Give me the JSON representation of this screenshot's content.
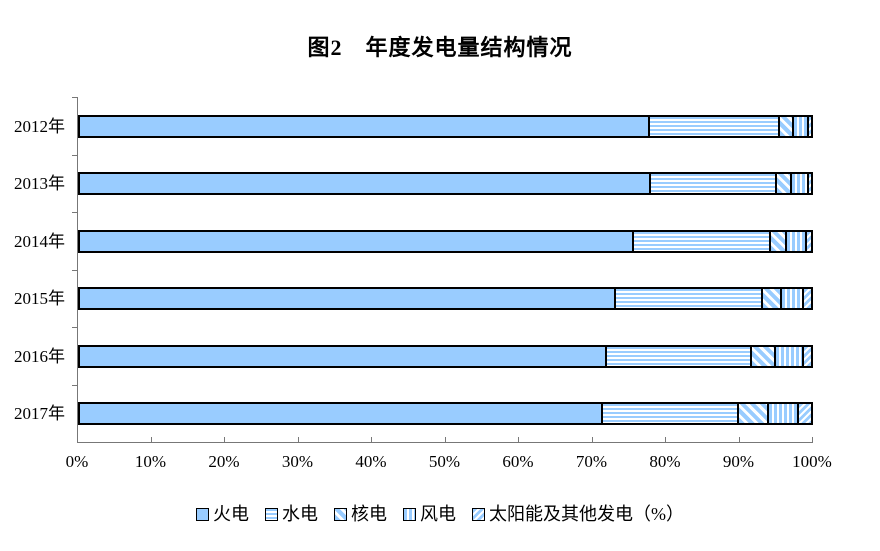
{
  "title": "图2　年度发电量结构情况",
  "chart_data": {
    "type": "bar",
    "orientation": "horizontal-stacked",
    "title": "图2　年度发电量结构情况",
    "categories": [
      "2012年",
      "2013年",
      "2014年",
      "2015年",
      "2016年",
      "2017年"
    ],
    "series": [
      {
        "name": "火电",
        "pattern": "solid",
        "values": [
          78.0,
          78.1,
          75.8,
          73.3,
          72.1,
          71.6
        ]
      },
      {
        "name": "水电",
        "pattern": "hstripe",
        "values": [
          17.7,
          17.3,
          18.7,
          20.1,
          19.8,
          18.5
        ]
      },
      {
        "name": "核电",
        "pattern": "diag-down",
        "values": [
          2.0,
          2.0,
          2.2,
          2.6,
          3.3,
          4.1
        ]
      },
      {
        "name": "风电",
        "pattern": "vstripe",
        "values": [
          2.0,
          2.3,
          2.7,
          3.1,
          3.8,
          4.1
        ]
      },
      {
        "name": "太阳能及其他发电（%）",
        "pattern": "diag-up",
        "values": [
          0.3,
          0.3,
          0.6,
          0.9,
          1.0,
          1.7
        ]
      }
    ],
    "x_ticks": [
      "0%",
      "10%",
      "20%",
      "30%",
      "40%",
      "50%",
      "60%",
      "70%",
      "80%",
      "90%",
      "100%"
    ],
    "xlim": [
      0,
      100
    ],
    "xlabel": "",
    "ylabel": "",
    "grid": false,
    "legend_position": "bottom",
    "bar_fill_color": "#99CCFF",
    "bar_border_color": "#000000",
    "axis_color": "#777777"
  }
}
